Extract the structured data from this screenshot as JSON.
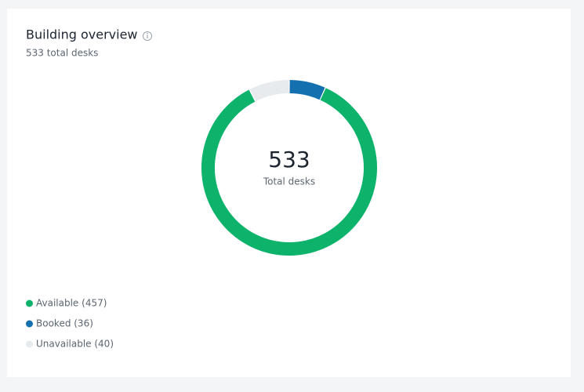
{
  "chart_data": {
    "type": "donut",
    "title": "Building overview",
    "subtitle": "533 total desks",
    "center_value": 533,
    "center_label": "Total desks",
    "categories": [
      "Available (457)",
      "Booked (36)",
      "Unavailable (40)"
    ],
    "values": [
      457,
      36,
      40
    ],
    "colors": [
      "#0db26b",
      "#1570b0",
      "#e8ebee"
    ],
    "sector_order": [
      1,
      0,
      2
    ]
  }
}
